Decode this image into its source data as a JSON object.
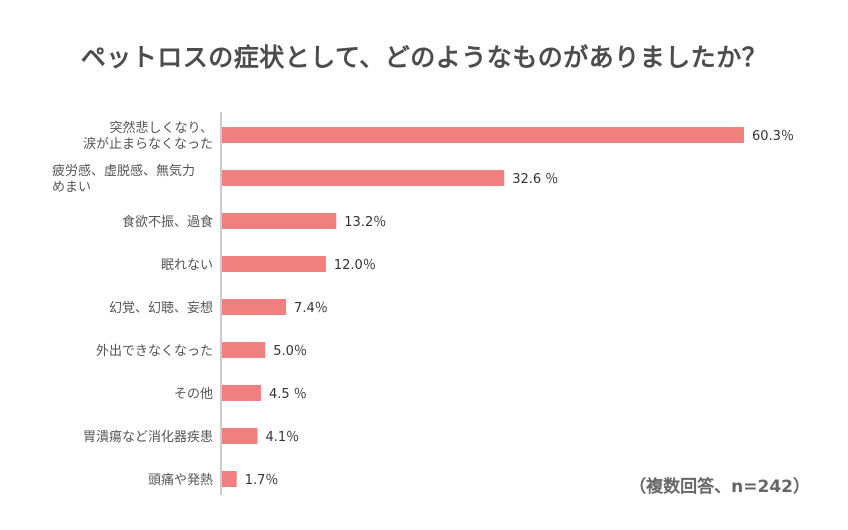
{
  "chart_data": {
    "type": "bar",
    "orientation": "horizontal",
    "title": "ペットロスの症状として、どのようなものがありましたか？",
    "note": "（複数回答、n=242）",
    "bar_color": "#f08080",
    "axis_color": "#999999",
    "xlim": [
      0,
      60.3
    ],
    "grid": false,
    "categories": [
      [
        "突然悲しくなり、",
        "涙が止まらなくなった"
      ],
      [
        "疲労感、虚脱感、無気力",
        "めまい"
      ],
      [
        "食欲不振、過食"
      ],
      [
        "眠れない"
      ],
      [
        "幻覚、幻聴、妄想"
      ],
      [
        "外出できなくなった"
      ],
      [
        "その他"
      ],
      [
        "胃潰瘍など消化器疾患"
      ],
      [
        "頭痛や発熱"
      ]
    ],
    "values": [
      60.3,
      32.6,
      13.2,
      12.0,
      7.4,
      5.0,
      4.5,
      4.1,
      1.7
    ],
    "value_labels": [
      "60.3％",
      "32.6 ％",
      "13.2％",
      "12.0％",
      "7.4％",
      "5.0％",
      "4.5 ％",
      "4.1％",
      "1.7％"
    ]
  }
}
